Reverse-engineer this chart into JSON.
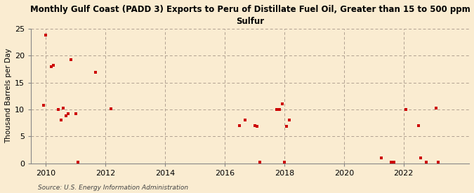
{
  "title": "Monthly Gulf Coast (PADD 3) Exports to Peru of Distillate Fuel Oil, Greater than 15 to 500 ppm\nSulfur",
  "ylabel": "Thousand Barrels per Day",
  "source": "Source: U.S. Energy Information Administration",
  "background_color": "#faecd1",
  "plot_bg_color": "#faecd1",
  "scatter_color": "#cc0000",
  "xlim": [
    2009.5,
    2024.2
  ],
  "ylim": [
    0,
    25
  ],
  "yticks": [
    0,
    5,
    10,
    15,
    20,
    25
  ],
  "xticks": [
    2010,
    2012,
    2014,
    2016,
    2018,
    2020,
    2022
  ],
  "data_points": [
    [
      2009.92,
      10.8
    ],
    [
      2010.0,
      23.8
    ],
    [
      2010.17,
      18.0
    ],
    [
      2010.25,
      18.2
    ],
    [
      2010.42,
      10.0
    ],
    [
      2010.5,
      8.0
    ],
    [
      2010.58,
      10.2
    ],
    [
      2010.67,
      8.8
    ],
    [
      2010.75,
      9.2
    ],
    [
      2010.83,
      19.2
    ],
    [
      2011.0,
      9.2
    ],
    [
      2011.08,
      0.2
    ],
    [
      2011.67,
      16.9
    ],
    [
      2012.17,
      10.1
    ],
    [
      2016.5,
      7.0
    ],
    [
      2016.67,
      8.0
    ],
    [
      2017.0,
      7.0
    ],
    [
      2017.08,
      6.8
    ],
    [
      2017.17,
      0.2
    ],
    [
      2017.75,
      10.0
    ],
    [
      2017.83,
      10.0
    ],
    [
      2017.92,
      11.0
    ],
    [
      2018.0,
      0.2
    ],
    [
      2018.08,
      6.9
    ],
    [
      2018.17,
      8.0
    ],
    [
      2021.25,
      1.0
    ],
    [
      2021.58,
      0.2
    ],
    [
      2021.67,
      0.2
    ],
    [
      2022.08,
      10.0
    ],
    [
      2022.5,
      7.0
    ],
    [
      2022.58,
      1.0
    ],
    [
      2022.75,
      0.2
    ],
    [
      2023.08,
      10.2
    ],
    [
      2023.17,
      0.2
    ]
  ]
}
